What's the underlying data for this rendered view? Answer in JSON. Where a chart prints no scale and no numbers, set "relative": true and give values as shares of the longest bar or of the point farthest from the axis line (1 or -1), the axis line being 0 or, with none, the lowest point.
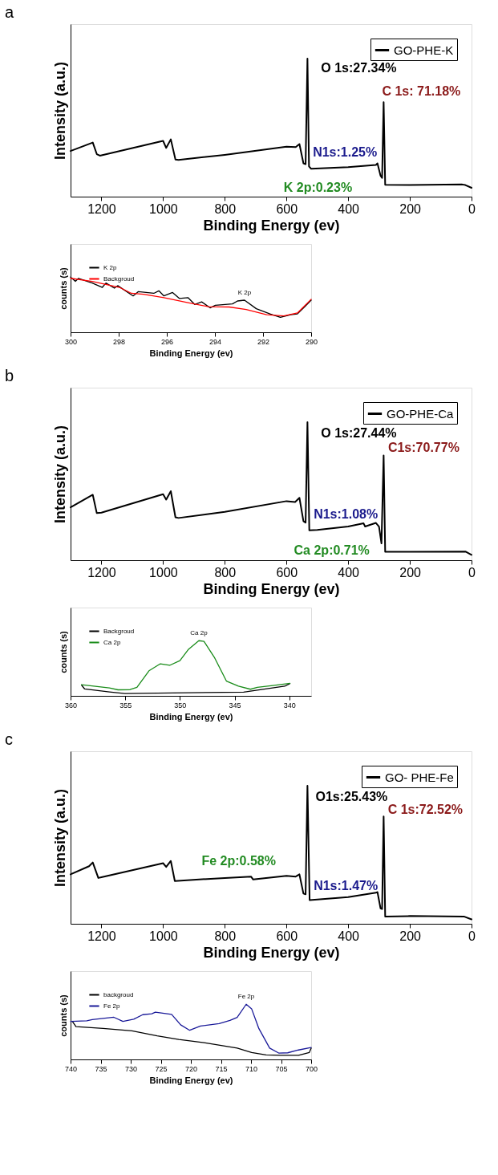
{
  "chart_data": [
    {
      "type": "line",
      "title": "a",
      "xlabel": "Binding Energy (ev)",
      "ylabel": "Intensity (a.u.)",
      "xlim": [
        1300,
        0
      ],
      "xticks": [
        1200,
        1000,
        800,
        600,
        400,
        200,
        0
      ],
      "relative": true,
      "legend": "top right",
      "series": [
        {
          "name": "GO-PHE-K",
          "color": "#000000",
          "x": [
            1300,
            1228,
            1215,
            1205,
            1000,
            990,
            975,
            960,
            950,
            800,
            600,
            570,
            558,
            545,
            538,
            532,
            527,
            520,
            400,
            310,
            305,
            295,
            290,
            285,
            280,
            200,
            30,
            20,
            0
          ],
          "values": [
            0.331,
            0.392,
            0.308,
            0.297,
            0.404,
            0.353,
            0.415,
            0.269,
            0.266,
            0.303,
            0.362,
            0.359,
            0.381,
            0.241,
            0.235,
            1.0,
            0.219,
            0.202,
            0.213,
            0.23,
            0.241,
            0.151,
            0.135,
            0.684,
            0.086,
            0.084,
            0.088,
            0.084,
            0.064
          ]
        }
      ],
      "annotations": [
        {
          "text": "O 1s:27.34%",
          "x": 532,
          "y": 1.0
        },
        {
          "text": "C 1s: 71.18%",
          "x": 285,
          "y": 0.684
        },
        {
          "text": "N1s:1.25%",
          "x": 400,
          "y": 0.213
        },
        {
          "text": "K 2p:0.23%",
          "x": 290,
          "y": 0.135
        }
      ]
    },
    {
      "type": "line",
      "xlabel": "Binding Energy (ev)",
      "ylabel": "counts (s)",
      "xlim": [
        300,
        290
      ],
      "xticks": [
        300,
        298,
        296,
        294,
        292,
        290
      ],
      "relative": true,
      "legend": "top left",
      "series": [
        {
          "name": "K 2p",
          "color": "#000000",
          "x": [
            300,
            299.8,
            299.67,
            299.1,
            298.68,
            298.53,
            298.18,
            298.04,
            297.4,
            297.18,
            296.54,
            296.33,
            296.12,
            295.76,
            295.48,
            295.12,
            294.84,
            294.55,
            294.2,
            293.98,
            293.27,
            293.06,
            292.77,
            292.28,
            291.71,
            291.28,
            290.85,
            290.57,
            290.28,
            290
          ],
          "values": [
            1.0,
            0.923,
            0.978,
            0.892,
            0.814,
            0.892,
            0.799,
            0.845,
            0.659,
            0.737,
            0.706,
            0.752,
            0.659,
            0.721,
            0.613,
            0.628,
            0.505,
            0.551,
            0.443,
            0.489,
            0.514,
            0.567,
            0.582,
            0.427,
            0.334,
            0.272,
            0.319,
            0.334,
            0.458,
            0.582
          ]
        },
        {
          "name": "Backgroud",
          "color": "#ff0000",
          "x": [
            300,
            299.1,
            297.97,
            297.47,
            296.97,
            296.12,
            295.12,
            294.27,
            293.41,
            292.7,
            291.85,
            291.14,
            290.57,
            290
          ],
          "values": [
            0.978,
            0.923,
            0.814,
            0.706,
            0.69,
            0.628,
            0.536,
            0.464,
            0.458,
            0.412,
            0.319,
            0.297,
            0.35,
            0.598
          ]
        }
      ],
      "annotations": [
        {
          "text": "K 2p",
          "x": 292.77,
          "y": 0.582
        }
      ]
    },
    {
      "type": "line",
      "title": "b",
      "xlabel": "Binding Energy (ev)",
      "ylabel": "Intensity (a.u.)",
      "xlim": [
        1300,
        0
      ],
      "xticks": [
        1200,
        1000,
        800,
        600,
        400,
        200,
        0
      ],
      "relative": true,
      "legend": "top right",
      "series": [
        {
          "name": "GO-PHE-Ca",
          "color": "#000000",
          "x": [
            1300,
            1228,
            1215,
            1200,
            1000,
            990,
            975,
            960,
            950,
            800,
            600,
            572,
            558,
            545,
            538,
            532,
            526,
            500,
            400,
            350,
            345,
            310,
            300,
            292,
            285,
            280,
            200,
            20,
            0
          ],
          "values": [
            0.383,
            0.474,
            0.341,
            0.344,
            0.478,
            0.439,
            0.5,
            0.311,
            0.306,
            0.35,
            0.428,
            0.422,
            0.452,
            0.283,
            0.272,
            1.0,
            0.217,
            0.219,
            0.244,
            0.267,
            0.244,
            0.27,
            0.244,
            0.122,
            0.758,
            0.061,
            0.061,
            0.063,
            0.039
          ]
        }
      ],
      "annotations": [
        {
          "text": "O 1s:27.44%",
          "x": 532,
          "y": 1.0
        },
        {
          "text": "C1s:70.77%",
          "x": 285,
          "y": 0.758
        },
        {
          "text": "N1s:1.08%",
          "x": 400,
          "y": 0.244
        },
        {
          "text": "Ca 2p:0.71%",
          "x": 292,
          "y": 0.122
        }
      ]
    },
    {
      "type": "line",
      "xlabel": "Binding Energy (ev)",
      "ylabel": "counts (s)",
      "xlim": [
        360,
        338
      ],
      "xticks": [
        360,
        355,
        350,
        345,
        340
      ],
      "relative": true,
      "legend": "top left",
      "series": [
        {
          "name": "Backgroud",
          "color": "#000000",
          "x": [
            359.0,
            358.71,
            356.45,
            355.03,
            344.18,
            342.92,
            340.41,
            339.94
          ],
          "values": [
            0.196,
            0.124,
            0.072,
            0.041,
            0.068,
            0.103,
            0.175,
            0.223
          ]
        },
        {
          "name": "Ca 2p",
          "color": "#1a8c1a",
          "x": [
            359.0,
            356.45,
            355.66,
            354.56,
            353.93,
            352.83,
            351.79,
            350.94,
            350.0,
            349.21,
            348.27,
            347.8,
            346.86,
            345.75,
            344.65,
            343.55,
            342.92,
            341.35,
            339.94
          ],
          "values": [
            0.202,
            0.144,
            0.109,
            0.113,
            0.155,
            0.454,
            0.581,
            0.553,
            0.639,
            0.845,
            1.0,
            0.986,
            0.701,
            0.268,
            0.175,
            0.12,
            0.155,
            0.192,
            0.227
          ]
        }
      ],
      "annotations": [
        {
          "text": "Ca 2p",
          "x": 348.27,
          "y": 1.0
        }
      ]
    },
    {
      "type": "line",
      "title": "c",
      "xlabel": "Binding Energy (ev)",
      "ylabel": "Intensity (a.u.)",
      "xlim": [
        1300,
        0
      ],
      "xticks": [
        1200,
        1000,
        800,
        600,
        400,
        200,
        0
      ],
      "relative": true,
      "legend": "top right",
      "series": [
        {
          "name": "GO- PHE-Fe",
          "color": "#000000",
          "x": [
            1300,
            1240,
            1228,
            1210,
            1200,
            1000,
            990,
            975,
            962,
            800,
            715,
            708,
            600,
            570,
            558,
            545,
            538,
            532,
            525,
            400,
            310,
            305,
            295,
            290,
            285,
            280,
            200,
            25,
            0
          ],
          "values": [
            0.358,
            0.417,
            0.444,
            0.332,
            0.337,
            0.439,
            0.412,
            0.455,
            0.31,
            0.332,
            0.342,
            0.321,
            0.348,
            0.342,
            0.358,
            0.219,
            0.214,
            1.0,
            0.171,
            0.193,
            0.225,
            0.23,
            0.112,
            0.107,
            0.778,
            0.053,
            0.056,
            0.053,
            0.032
          ]
        }
      ],
      "annotations": [
        {
          "text": "O1s:25.43%",
          "x": 532,
          "y": 1.0
        },
        {
          "text": "C 1s:72.52%",
          "x": 285,
          "y": 0.778
        },
        {
          "text": "N1s:1.47%",
          "x": 400,
          "y": 0.193
        },
        {
          "text": "Fe 2p:0.58%",
          "x": 708,
          "y": 0.321
        }
      ]
    },
    {
      "type": "line",
      "xlabel": "Binding Energy (ev)",
      "ylabel": "counts (s)",
      "xlim": [
        740,
        700
      ],
      "xticks": [
        740,
        735,
        730,
        725,
        720,
        715,
        710,
        705,
        700
      ],
      "relative": true,
      "legend": "top left",
      "series": [
        {
          "name": "backgroud",
          "color": "#000000",
          "x": [
            739.7,
            739.1,
            734.6,
            729.8,
            725.6,
            722.0,
            717.8,
            712.3,
            709.9,
            707.5,
            705.1,
            702.1,
            700.3,
            700
          ],
          "values": [
            0.69,
            0.595,
            0.561,
            0.517,
            0.428,
            0.361,
            0.305,
            0.205,
            0.127,
            0.082,
            0.076,
            0.076,
            0.127,
            0.205
          ]
        },
        {
          "name": "Fe 2p",
          "color": "#1a1a99",
          "x": [
            740,
            737.3,
            736.4,
            732.8,
            731.3,
            729.5,
            728.0,
            726.5,
            725.9,
            723.2,
            721.7,
            720.2,
            718.4,
            715.3,
            713.5,
            712.3,
            710.8,
            709.9,
            708.7,
            706.9,
            705.4,
            703.9,
            702.1,
            700
          ],
          "values": [
            0.69,
            0.699,
            0.722,
            0.764,
            0.69,
            0.728,
            0.811,
            0.828,
            0.855,
            0.817,
            0.628,
            0.528,
            0.606,
            0.65,
            0.706,
            0.762,
            1.0,
            0.918,
            0.561,
            0.205,
            0.116,
            0.12,
            0.171,
            0.216
          ]
        }
      ],
      "annotations": [
        {
          "text": "Fe 2p",
          "x": 710.8,
          "y": 1.0
        }
      ]
    }
  ]
}
